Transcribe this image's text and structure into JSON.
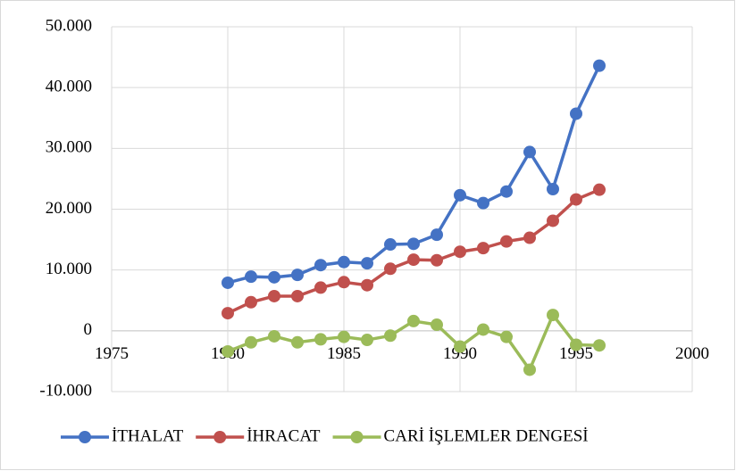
{
  "chart_data": {
    "type": "line",
    "x": [
      1980,
      1981,
      1982,
      1983,
      1984,
      1985,
      1986,
      1987,
      1988,
      1989,
      1990,
      1991,
      1992,
      1993,
      1994,
      1995,
      1996
    ],
    "series": [
      {
        "name": "İTHALAT",
        "color": "#4472c4",
        "values": [
          7900,
          8900,
          8800,
          9200,
          10800,
          11300,
          11100,
          14200,
          14300,
          15800,
          22300,
          21000,
          22900,
          29400,
          23300,
          35700,
          43600
        ]
      },
      {
        "name": "İHRACAT",
        "color": "#c0504d",
        "values": [
          2900,
          4700,
          5700,
          5700,
          7100,
          8000,
          7500,
          10200,
          11700,
          11600,
          13000,
          13600,
          14700,
          15300,
          18100,
          21600,
          23200
        ]
      },
      {
        "name": "CARİ İŞLEMLER DENGESİ",
        "color": "#9bbb59",
        "values": [
          -3400,
          -1900,
          -900,
          -1900,
          -1400,
          -1000,
          -1500,
          -800,
          1600,
          1000,
          -2600,
          200,
          -1000,
          -6400,
          2600,
          -2300,
          -2400
        ]
      }
    ],
    "xlim": [
      1975,
      2000
    ],
    "xticks": [
      1975,
      1980,
      1985,
      1990,
      1995,
      2000
    ],
    "ylim": [
      -10000,
      50000
    ],
    "yticks": [
      {
        "value": -10000,
        "label": "-10.000"
      },
      0,
      {
        "value": 10000,
        "label": "10.000"
      },
      {
        "value": 20000,
        "label": "20.000"
      },
      {
        "value": 30000,
        "label": "30.000"
      },
      {
        "value": 40000,
        "label": "40.000"
      },
      {
        "value": 50000,
        "label": "50.000"
      }
    ],
    "grid": true,
    "legend": "bottom"
  }
}
